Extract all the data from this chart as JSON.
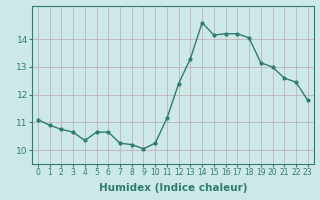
{
  "x": [
    0,
    1,
    2,
    3,
    4,
    5,
    6,
    7,
    8,
    9,
    10,
    11,
    12,
    13,
    14,
    15,
    16,
    17,
    18,
    19,
    20,
    21,
    22,
    23
  ],
  "y": [
    11.1,
    10.9,
    10.75,
    10.65,
    10.35,
    10.65,
    10.65,
    10.25,
    10.2,
    10.05,
    10.25,
    11.15,
    12.4,
    13.3,
    14.6,
    14.15,
    14.2,
    14.2,
    14.05,
    13.15,
    13.0,
    12.6,
    12.45,
    11.8
  ],
  "line_color": "#2e7d6e",
  "marker": "o",
  "marker_size": 2.0,
  "line_width": 1.0,
  "xlabel": "Humidex (Indice chaleur)",
  "ylim": [
    9.5,
    15.2
  ],
  "xlim": [
    -0.5,
    23.5
  ],
  "yticks": [
    10,
    11,
    12,
    13,
    14
  ],
  "xticks": [
    0,
    1,
    2,
    3,
    4,
    5,
    6,
    7,
    8,
    9,
    10,
    11,
    12,
    13,
    14,
    15,
    16,
    17,
    18,
    19,
    20,
    21,
    22,
    23
  ],
  "xtick_labels": [
    "0",
    "1",
    "2",
    "3",
    "4",
    "5",
    "6",
    "7",
    "8",
    "9",
    "10",
    "11",
    "12",
    "13",
    "14",
    "15",
    "16",
    "17",
    "18",
    "19",
    "20",
    "21",
    "22",
    "23"
  ],
  "bg_color": "#cce8e8",
  "grid_color": "#c0a8a8",
  "axis_color": "#2e7d6e",
  "tick_color": "#2e7d6e",
  "label_color": "#2e7d6e",
  "xlabel_fontsize": 7.5,
  "ytick_fontsize": 6.5,
  "xtick_fontsize": 5.5
}
